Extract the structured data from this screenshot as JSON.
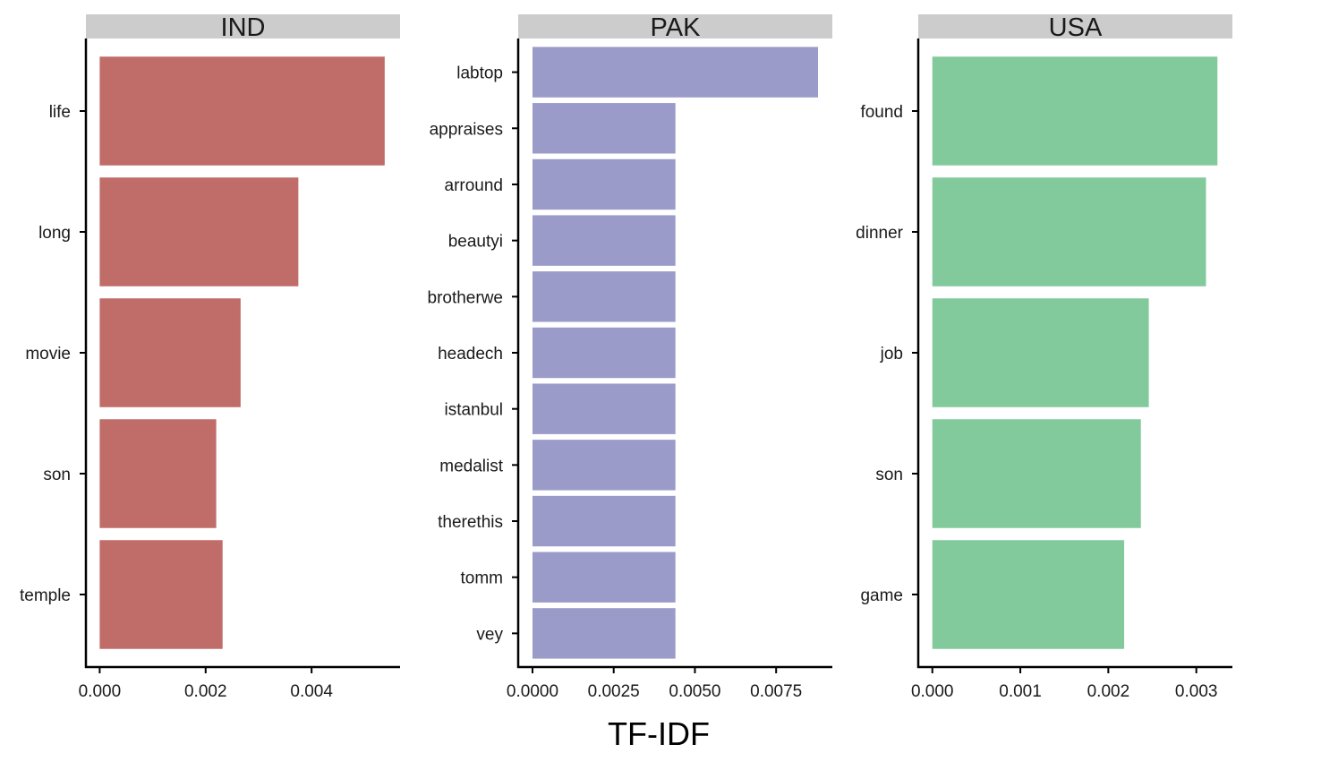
{
  "chart_data": {
    "type": "bar",
    "orientation": "horizontal",
    "xlabel": "TF-IDF",
    "ylabel": "",
    "grid": false,
    "panels": [
      {
        "title": "IND",
        "color": "#c06c68",
        "categories": [
          "life",
          "long",
          "movie",
          "son",
          "temple"
        ],
        "values": [
          0.00538,
          0.00375,
          0.00266,
          0.0022,
          0.00232
        ],
        "xlim": [
          -0.00026,
          0.00567
        ],
        "xticks": [
          0,
          0.002,
          0.004
        ],
        "xtick_labels": [
          "0.000",
          "0.002",
          "0.004"
        ]
      },
      {
        "title": "PAK",
        "color": "#9a9bc8",
        "categories": [
          "labtop",
          "appraises",
          "arround",
          "beautyi",
          "brotherwe",
          "headech",
          "istanbul",
          "medalist",
          "therethis",
          "tomm",
          "vey"
        ],
        "values": [
          0.00879,
          0.0044,
          0.0044,
          0.0044,
          0.0044,
          0.0044,
          0.0044,
          0.0044,
          0.0044,
          0.0044,
          0.0044
        ],
        "xlim": [
          -0.00044,
          0.00923
        ],
        "xticks": [
          0,
          0.0025,
          0.005,
          0.0075
        ],
        "xtick_labels": [
          "0.0000",
          "0.0025",
          "0.0050",
          "0.0075"
        ]
      },
      {
        "title": "USA",
        "color": "#82ca9c",
        "categories": [
          "found",
          "dinner",
          "job",
          "son",
          "game"
        ],
        "values": [
          0.00324,
          0.00311,
          0.00246,
          0.00237,
          0.00218
        ],
        "xlim": [
          -0.00016,
          0.00341
        ],
        "xticks": [
          0,
          0.001,
          0.002,
          0.003
        ],
        "xtick_labels": [
          "0.000",
          "0.001",
          "0.002",
          "0.003"
        ]
      }
    ]
  }
}
